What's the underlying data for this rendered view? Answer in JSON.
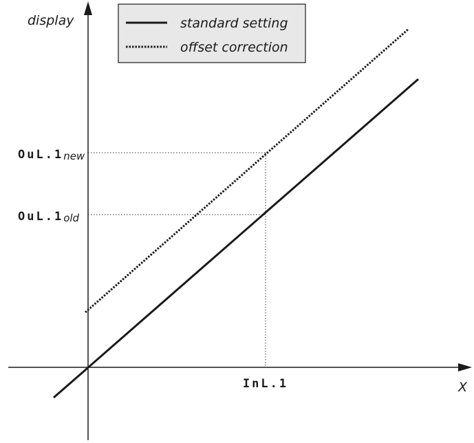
{
  "axes": {
    "y_label": "display",
    "x_label": "X"
  },
  "legend": {
    "items": [
      {
        "label": "standard setting",
        "style": "solid"
      },
      {
        "label": "offset correction",
        "style": "dotted"
      }
    ],
    "background": "#e8e8e8"
  },
  "markers": {
    "out_new": {
      "code": "OuL.1",
      "sub": "new"
    },
    "out_old": {
      "code": "OuL.1",
      "sub": "old"
    },
    "input": {
      "code": "InL.1"
    }
  },
  "colors": {
    "line": "#1a1a1a",
    "guide": "#333333"
  }
}
